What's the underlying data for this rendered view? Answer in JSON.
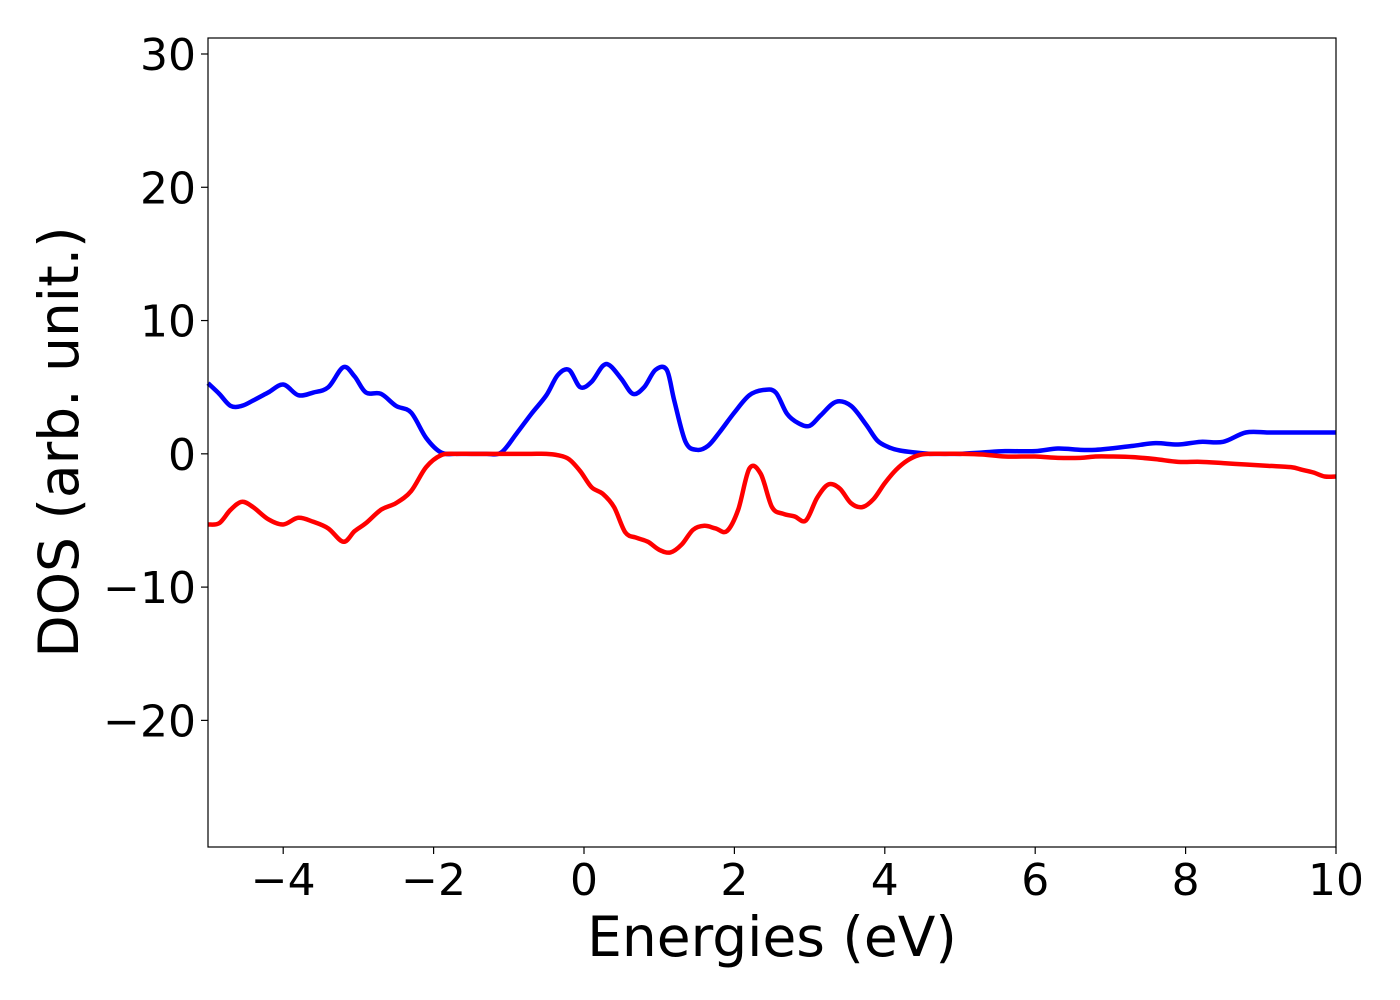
{
  "chart_data": {
    "type": "line",
    "title": "",
    "xlabel": "Energies (eV)",
    "ylabel": "DOS (arb. unit.)",
    "xlim": [
      -5,
      10
    ],
    "ylim": [
      -29.5,
      31.2
    ],
    "xticks": [
      -4,
      -2,
      0,
      2,
      4,
      6,
      8,
      10
    ],
    "yticks": [
      -20,
      -10,
      0,
      10,
      20,
      30
    ],
    "xtick_labels": [
      "−4",
      "−2",
      "0",
      "2",
      "4",
      "6",
      "8",
      "10"
    ],
    "ytick_labels": [
      "−20",
      "−10",
      "0",
      "10",
      "20",
      "30"
    ],
    "grid": false,
    "legend": "none",
    "series": [
      {
        "color": "#0000ff",
        "x": [
          -5.0,
          -4.85,
          -4.7,
          -4.55,
          -4.4,
          -4.2,
          -4.0,
          -3.8,
          -3.6,
          -3.4,
          -3.2,
          -3.05,
          -2.9,
          -2.7,
          -2.5,
          -2.3,
          -2.1,
          -1.9,
          -1.7,
          -1.5,
          -1.3,
          -1.1,
          -0.9,
          -0.7,
          -0.5,
          -0.35,
          -0.2,
          -0.05,
          0.1,
          0.25,
          0.35,
          0.5,
          0.65,
          0.8,
          0.95,
          1.1,
          1.2,
          1.35,
          1.5,
          1.65,
          1.8,
          2.0,
          2.2,
          2.4,
          2.55,
          2.7,
          2.85,
          3.0,
          3.15,
          3.35,
          3.55,
          3.75,
          3.9,
          4.05,
          4.2,
          4.4,
          4.6,
          4.8,
          5.0,
          5.3,
          5.6,
          6.0,
          6.3,
          6.6,
          6.8,
          7.0,
          7.3,
          7.6,
          7.9,
          8.2,
          8.5,
          8.8,
          9.1,
          9.4,
          9.55,
          9.7,
          9.85,
          10.0
        ],
        "y": [
          5.3,
          4.5,
          3.6,
          3.6,
          4.0,
          4.6,
          5.2,
          4.4,
          4.6,
          5.0,
          6.5,
          5.8,
          4.6,
          4.5,
          3.6,
          3.1,
          1.2,
          0.1,
          0.0,
          0.0,
          0.0,
          0.1,
          1.5,
          3.0,
          4.4,
          5.9,
          6.3,
          5.0,
          5.4,
          6.6,
          6.6,
          5.6,
          4.5,
          5.0,
          6.3,
          6.3,
          4.0,
          0.9,
          0.3,
          0.6,
          1.6,
          3.1,
          4.4,
          4.8,
          4.6,
          3.0,
          2.3,
          2.1,
          2.9,
          3.9,
          3.6,
          2.2,
          1.0,
          0.5,
          0.25,
          0.1,
          0.0,
          0.0,
          0.0,
          0.1,
          0.2,
          0.2,
          0.4,
          0.3,
          0.3,
          0.4,
          0.6,
          0.8,
          0.7,
          0.9,
          0.9,
          1.6,
          1.6,
          1.6,
          1.6,
          1.6,
          1.6,
          1.6
        ]
      },
      {
        "color": "#ff0000",
        "x": [
          -5.0,
          -4.85,
          -4.7,
          -4.55,
          -4.4,
          -4.2,
          -4.0,
          -3.8,
          -3.6,
          -3.4,
          -3.2,
          -3.05,
          -2.9,
          -2.7,
          -2.5,
          -2.3,
          -2.1,
          -1.9,
          -1.7,
          -1.5,
          -1.3,
          -1.1,
          -0.9,
          -0.7,
          -0.5,
          -0.35,
          -0.2,
          -0.05,
          0.1,
          0.25,
          0.4,
          0.55,
          0.7,
          0.85,
          1.0,
          1.15,
          1.3,
          1.45,
          1.6,
          1.75,
          1.9,
          2.05,
          2.2,
          2.35,
          2.5,
          2.65,
          2.8,
          2.95,
          3.1,
          3.25,
          3.4,
          3.55,
          3.7,
          3.85,
          4.0,
          4.15,
          4.3,
          4.45,
          4.6,
          4.8,
          5.0,
          5.3,
          5.6,
          6.0,
          6.3,
          6.6,
          6.8,
          7.0,
          7.3,
          7.6,
          7.9,
          8.2,
          8.5,
          8.8,
          9.1,
          9.4,
          9.55,
          9.7,
          9.85,
          10.0
        ],
        "y": [
          -5.3,
          -5.2,
          -4.2,
          -3.6,
          -4.0,
          -4.9,
          -5.3,
          -4.8,
          -5.1,
          -5.6,
          -6.6,
          -5.8,
          -5.2,
          -4.2,
          -3.7,
          -2.8,
          -1.0,
          -0.1,
          0.0,
          0.0,
          0.0,
          0.0,
          0.0,
          0.0,
          0.0,
          -0.1,
          -0.4,
          -1.3,
          -2.5,
          -3.0,
          -4.0,
          -5.9,
          -6.3,
          -6.6,
          -7.2,
          -7.4,
          -6.8,
          -5.7,
          -5.4,
          -5.6,
          -5.8,
          -4.2,
          -1.1,
          -1.5,
          -4.0,
          -4.5,
          -4.7,
          -5.0,
          -3.3,
          -2.3,
          -2.6,
          -3.7,
          -4.0,
          -3.4,
          -2.2,
          -1.2,
          -0.5,
          -0.1,
          0.0,
          0.0,
          0.0,
          -0.05,
          -0.2,
          -0.2,
          -0.3,
          -0.3,
          -0.2,
          -0.2,
          -0.25,
          -0.4,
          -0.6,
          -0.6,
          -0.7,
          -0.8,
          -0.9,
          -1.0,
          -1.2,
          -1.4,
          -1.7,
          -1.7
        ]
      }
    ]
  }
}
